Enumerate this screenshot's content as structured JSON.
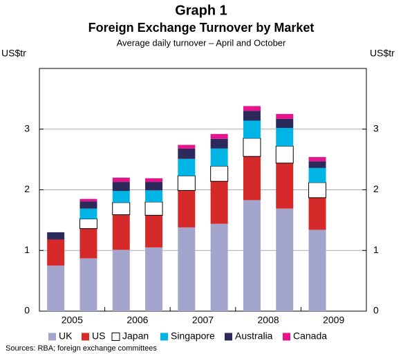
{
  "chart_data": {
    "type": "stacked_bar",
    "title": "Graph 1",
    "subtitle": "Foreign Exchange Turnover by Market",
    "note": "Average daily turnover –  April and October",
    "y_label": "US$tr",
    "y2_label": "US$tr",
    "source": "Sources: RBA; foreign exchange committees",
    "categories": [
      "2005",
      null,
      "2006",
      null,
      "2007",
      null,
      "2008",
      null,
      "2009",
      null
    ],
    "series": [
      {
        "name": "UK",
        "color": "#a3a5cc",
        "values": [
          0.75,
          0.87,
          1.01,
          1.05,
          1.38,
          1.44,
          1.83,
          1.69,
          1.34,
          null
        ]
      },
      {
        "name": "US",
        "color": "#d62a2a",
        "values": [
          0.43,
          0.49,
          0.58,
          0.53,
          0.61,
          0.7,
          0.72,
          0.75,
          0.53,
          null
        ]
      },
      {
        "name": "Japan",
        "color": "#ffffff",
        "values": [
          null,
          0.16,
          0.2,
          0.22,
          0.24,
          0.25,
          0.3,
          0.28,
          0.25,
          null
        ]
      },
      {
        "name": "Singapore",
        "color": "#00b4e6",
        "values": [
          null,
          0.17,
          0.19,
          0.19,
          0.28,
          0.29,
          0.29,
          0.3,
          0.24,
          null
        ]
      },
      {
        "name": "Australia",
        "color": "#2b2a5a",
        "values": [
          0.12,
          0.12,
          0.15,
          0.14,
          0.17,
          0.16,
          0.16,
          0.15,
          0.11,
          null
        ]
      },
      {
        "name": "Canada",
        "color": "#e6138c",
        "values": [
          null,
          0.04,
          0.07,
          0.06,
          0.06,
          0.08,
          0.08,
          0.08,
          0.07,
          null
        ]
      }
    ],
    "ylim": [
      0,
      4
    ],
    "yticks": [
      0,
      1,
      2,
      3
    ],
    "y2lim": [
      0,
      4
    ],
    "y2ticks": [
      0,
      1,
      2,
      3
    ],
    "grid": true
  }
}
